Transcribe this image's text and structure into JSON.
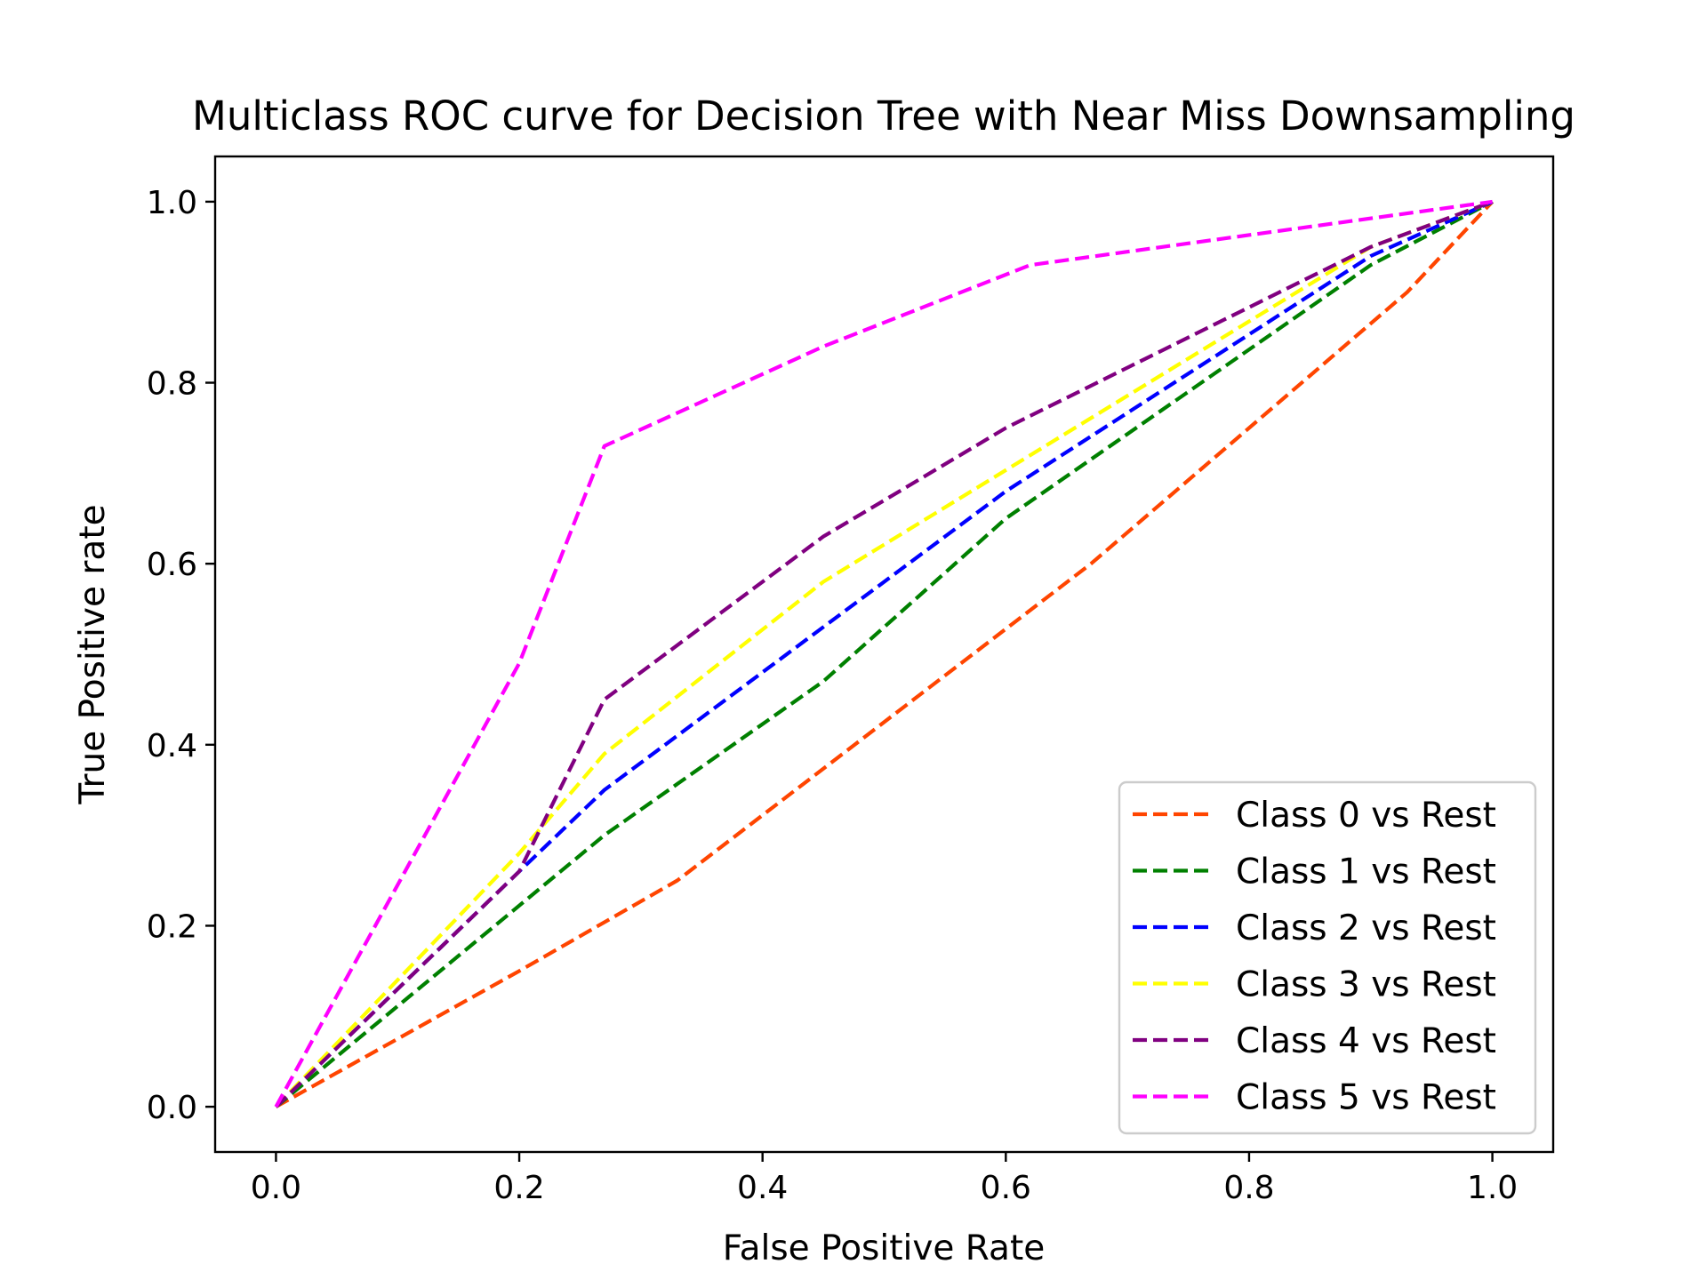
{
  "chart_data": {
    "type": "line",
    "title": "Multiclass ROC curve for Decision Tree with Near Miss Downsampling",
    "xlabel": "False Positive Rate",
    "ylabel": "True Positive rate",
    "xlim": [
      -0.05,
      1.05
    ],
    "ylim": [
      -0.05,
      1.05
    ],
    "xticks": [
      0.0,
      0.2,
      0.4,
      0.6,
      0.8,
      1.0
    ],
    "xtick_labels": [
      "0.0",
      "0.2",
      "0.4",
      "0.6",
      "0.8",
      "1.0"
    ],
    "yticks": [
      0.0,
      0.2,
      0.4,
      0.6,
      0.8,
      1.0
    ],
    "ytick_labels": [
      "0.0",
      "0.2",
      "0.4",
      "0.6",
      "0.8",
      "1.0"
    ],
    "grid": false,
    "legend_position": "lower-right",
    "line_style": "dashed",
    "series": [
      {
        "name": "Class 0 vs Rest",
        "color": "#ff4500",
        "x": [
          0.0,
          0.2,
          0.33,
          0.67,
          0.93,
          1.0
        ],
        "y": [
          0.0,
          0.15,
          0.25,
          0.6,
          0.9,
          1.0
        ]
      },
      {
        "name": "Class 1 vs Rest",
        "color": "#008000",
        "x": [
          0.0,
          0.27,
          0.45,
          0.6,
          0.9,
          1.0
        ],
        "y": [
          0.0,
          0.3,
          0.47,
          0.65,
          0.93,
          1.0
        ]
      },
      {
        "name": "Class 2 vs Rest",
        "color": "#0000ff",
        "x": [
          0.0,
          0.2,
          0.27,
          0.6,
          0.9,
          1.0
        ],
        "y": [
          0.0,
          0.26,
          0.35,
          0.68,
          0.94,
          1.0
        ]
      },
      {
        "name": "Class 3 vs Rest",
        "color": "#ffff00",
        "x": [
          0.0,
          0.2,
          0.27,
          0.45,
          0.9,
          1.0
        ],
        "y": [
          0.0,
          0.28,
          0.39,
          0.58,
          0.95,
          1.0
        ]
      },
      {
        "name": "Class 4 vs Rest",
        "color": "#800080",
        "x": [
          0.0,
          0.2,
          0.27,
          0.45,
          0.6,
          0.9,
          1.0
        ],
        "y": [
          0.0,
          0.26,
          0.45,
          0.63,
          0.75,
          0.95,
          1.0
        ]
      },
      {
        "name": "Class 5 vs Rest",
        "color": "#ff00ff",
        "x": [
          0.0,
          0.2,
          0.27,
          0.45,
          0.62,
          1.0
        ],
        "y": [
          0.0,
          0.49,
          0.73,
          0.84,
          0.93,
          1.0
        ]
      }
    ]
  }
}
